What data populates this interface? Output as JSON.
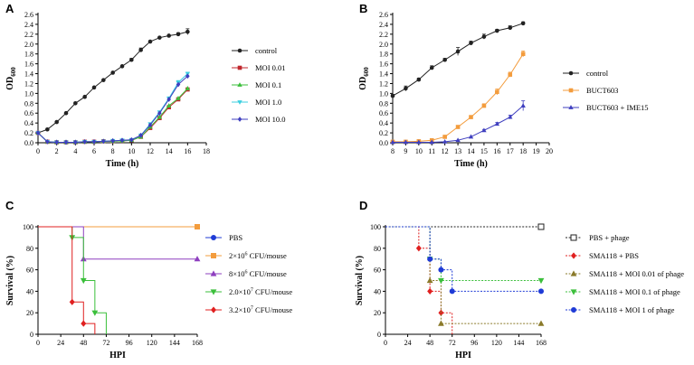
{
  "chart_data": [
    {
      "panel": "A",
      "type": "line",
      "xlabel": "Time (h)",
      "ylabel": "OD600",
      "ylabel_main": "OD",
      "ylabel_sub": "600",
      "xlim": [
        0,
        18
      ],
      "ylim": [
        0,
        2.6
      ],
      "xticks": [
        0,
        2,
        4,
        6,
        8,
        10,
        12,
        14,
        16,
        18
      ],
      "xtick_labels": [
        "0",
        "2",
        "4",
        "6",
        "8",
        "10",
        "12",
        "14",
        "16",
        "18"
      ],
      "yticks": [
        0,
        0.2,
        0.4,
        0.6,
        0.8,
        1.0,
        1.2,
        1.4,
        1.6,
        1.8,
        2.0,
        2.2,
        2.4,
        2.6
      ],
      "ytick_labels": [
        "0.0",
        "0.2",
        "0.4",
        "0.6",
        "0.8",
        "1.0",
        "1.2",
        "1.4",
        "1.6",
        "1.8",
        "2.0",
        "2.2",
        "2.4",
        "2.6"
      ],
      "legend_position": "right",
      "series": [
        {
          "name": "control",
          "color": "#222222",
          "marker": "circle",
          "x": [
            0,
            1,
            2,
            3,
            4,
            5,
            6,
            7,
            8,
            9,
            10,
            11,
            12,
            13,
            14,
            15,
            16
          ],
          "y": [
            0.2,
            0.27,
            0.42,
            0.6,
            0.8,
            0.93,
            1.12,
            1.27,
            1.42,
            1.55,
            1.68,
            1.88,
            2.05,
            2.13,
            2.17,
            2.2,
            2.25
          ],
          "err": [
            0,
            0,
            0,
            0,
            0,
            0,
            0,
            0,
            0,
            0,
            0.03,
            0.04,
            0,
            0,
            0,
            0.03,
            0.06
          ]
        },
        {
          "name": "MOI 0.01",
          "color": "#c0272d",
          "marker": "square",
          "x": [
            0,
            1,
            2,
            3,
            4,
            5,
            6,
            7,
            8,
            9,
            10,
            11,
            12,
            13,
            14,
            15,
            16
          ],
          "y": [
            0.2,
            0.02,
            0.01,
            0.01,
            0.01,
            0.02,
            0.02,
            0.03,
            0.03,
            0.04,
            0.05,
            0.12,
            0.3,
            0.5,
            0.72,
            0.88,
            1.08
          ],
          "err": []
        },
        {
          "name": "MOI 0.1",
          "color": "#3bbf3b",
          "marker": "triangle",
          "x": [
            0,
            1,
            2,
            3,
            4,
            5,
            6,
            7,
            8,
            9,
            10,
            11,
            12,
            13,
            14,
            15,
            16
          ],
          "y": [
            0.2,
            0.02,
            0.01,
            0.01,
            0.01,
            0.02,
            0.02,
            0.03,
            0.03,
            0.04,
            0.05,
            0.12,
            0.32,
            0.52,
            0.75,
            0.9,
            1.1
          ],
          "err": []
        },
        {
          "name": "MOI 1.0",
          "color": "#3ccfe0",
          "marker": "triangle-down",
          "x": [
            0,
            1,
            2,
            3,
            4,
            5,
            6,
            7,
            8,
            9,
            10,
            11,
            12,
            13,
            14,
            15,
            16
          ],
          "y": [
            0.2,
            0.02,
            0.01,
            0.01,
            0.01,
            0.02,
            0.02,
            0.03,
            0.04,
            0.05,
            0.06,
            0.15,
            0.38,
            0.62,
            0.9,
            1.22,
            1.4
          ],
          "err": [
            0,
            0,
            0,
            0,
            0,
            0,
            0,
            0,
            0,
            0,
            0,
            0,
            0,
            0,
            0.03,
            0.04,
            0.03
          ]
        },
        {
          "name": "MOI 10.0",
          "color": "#3f3fbf",
          "marker": "diamond",
          "x": [
            0,
            1,
            2,
            3,
            4,
            5,
            6,
            7,
            8,
            9,
            10,
            11,
            12,
            13,
            14,
            15,
            16
          ],
          "y": [
            0.2,
            0.02,
            0.01,
            0.01,
            0.01,
            0.02,
            0.02,
            0.03,
            0.04,
            0.05,
            0.06,
            0.15,
            0.36,
            0.6,
            0.88,
            1.18,
            1.35
          ],
          "err": []
        }
      ]
    },
    {
      "panel": "B",
      "type": "line",
      "xlabel": "Time (h)",
      "ylabel": "OD600",
      "ylabel_main": "OD",
      "ylabel_sub": "600",
      "xlim": [
        8,
        20
      ],
      "ylim": [
        0,
        2.6
      ],
      "xticks": [
        8,
        9,
        10,
        11,
        12,
        13,
        14,
        15,
        16,
        17,
        18,
        19,
        20
      ],
      "xtick_labels": [
        "8",
        "9",
        "10",
        "11",
        "12",
        "13",
        "14",
        "15",
        "16",
        "17",
        "18",
        "19",
        "20"
      ],
      "yticks": [
        0,
        0.2,
        0.4,
        0.6,
        0.8,
        1.0,
        1.2,
        1.4,
        1.6,
        1.8,
        2.0,
        2.2,
        2.4,
        2.6
      ],
      "ytick_labels": [
        "0.0",
        "0.2",
        "0.4",
        "0.6",
        "0.8",
        "1.0",
        "1.2",
        "1.4",
        "1.6",
        "1.8",
        "2.0",
        "2.2",
        "2.4",
        "2.6"
      ],
      "legend_position": "right",
      "series": [
        {
          "name": "control",
          "color": "#222222",
          "marker": "circle",
          "x": [
            8,
            9,
            10,
            11,
            12,
            13,
            14,
            15,
            16,
            17,
            18
          ],
          "y": [
            0.95,
            1.1,
            1.28,
            1.52,
            1.68,
            1.85,
            2.02,
            2.15,
            2.27,
            2.33,
            2.42
          ],
          "err": [
            0.03,
            0.05,
            0.03,
            0.04,
            0.03,
            0.08,
            0.04,
            0.05,
            0.03,
            0.04,
            0.03
          ]
        },
        {
          "name": "BUCT603",
          "color": "#f39c3d",
          "marker": "square",
          "x": [
            8,
            9,
            10,
            11,
            12,
            13,
            14,
            15,
            16,
            17,
            18
          ],
          "y": [
            0.02,
            0.02,
            0.03,
            0.05,
            0.12,
            0.32,
            0.52,
            0.75,
            1.03,
            1.38,
            1.8
          ],
          "err": [
            0,
            0,
            0,
            0,
            0.02,
            0.03,
            0.03,
            0.04,
            0.06,
            0.05,
            0.06
          ]
        },
        {
          "name": "BUCT603 + IME15",
          "color": "#3f3fbf",
          "marker": "triangle",
          "x": [
            8,
            9,
            10,
            11,
            12,
            13,
            14,
            15,
            16,
            17,
            18
          ],
          "y": [
            0.01,
            0.01,
            0.01,
            0.01,
            0.02,
            0.05,
            0.12,
            0.25,
            0.38,
            0.52,
            0.75
          ],
          "err": [
            0,
            0,
            0,
            0,
            0,
            0,
            0,
            0.02,
            0.03,
            0.04,
            0.1
          ]
        }
      ]
    },
    {
      "panel": "C",
      "type": "step",
      "xlabel": "HPI",
      "ylabel": "Survival (%)",
      "xlim": [
        0,
        168
      ],
      "ylim": [
        0,
        100
      ],
      "xticks": [
        0,
        24,
        48,
        72,
        96,
        120,
        144,
        168
      ],
      "xtick_labels": [
        "0",
        "24",
        "48",
        "72",
        "96",
        "120",
        "144",
        "168"
      ],
      "yticks": [
        0,
        20,
        40,
        60,
        80,
        100
      ],
      "ytick_labels": [
        "0",
        "20",
        "40",
        "60",
        "80",
        "100"
      ],
      "legend_position": "right",
      "series": [
        {
          "name": "PBS",
          "label_base": "PBS",
          "label_exp": "",
          "label_tail": "",
          "color": "#1f3bd6",
          "marker": "circle",
          "dashed": false,
          "x": [
            0,
            168
          ],
          "y": [
            100,
            100
          ]
        },
        {
          "name": "2×10^6 CFU/mouse",
          "label_base": "2×10",
          "label_exp": "6",
          "label_tail": " CFU/mouse",
          "color": "#f39c3d",
          "marker": "square",
          "dashed": false,
          "x": [
            0,
            168
          ],
          "y": [
            100,
            100
          ]
        },
        {
          "name": "8×10^6 CFU/mouse",
          "label_base": "8×10",
          "label_exp": "6",
          "label_tail": " CFU/mouse",
          "color": "#8e3fbf",
          "marker": "triangle",
          "dashed": false,
          "x": [
            0,
            48,
            168
          ],
          "y": [
            100,
            70,
            70
          ]
        },
        {
          "name": "2.0×10^7 CFU/mouse",
          "label_base": "2.0×10",
          "label_exp": "7",
          "label_tail": " CFU/mouse",
          "color": "#3bbf3b",
          "marker": "triangle-down",
          "dashed": false,
          "x": [
            0,
            36,
            48,
            60,
            72
          ],
          "y": [
            100,
            90,
            50,
            20,
            0
          ]
        },
        {
          "name": "3.2×10^7 CFU/mouse",
          "label_base": "3.2×10",
          "label_exp": "7",
          "label_tail": " CFU/mouse",
          "color": "#e02020",
          "marker": "diamond",
          "dashed": false,
          "x": [
            0,
            36,
            48,
            60
          ],
          "y": [
            100,
            30,
            10,
            0
          ]
        }
      ]
    },
    {
      "panel": "D",
      "type": "step",
      "xlabel": "HPI",
      "ylabel": "Survival (%)",
      "xlim": [
        0,
        168
      ],
      "ylim": [
        0,
        100
      ],
      "xticks": [
        0,
        24,
        48,
        72,
        96,
        120,
        144,
        168
      ],
      "xtick_labels": [
        "0",
        "24",
        "48",
        "72",
        "96",
        "120",
        "144",
        "168"
      ],
      "yticks": [
        0,
        20,
        40,
        60,
        80,
        100
      ],
      "ytick_labels": [
        "0",
        "20",
        "40",
        "60",
        "80",
        "100"
      ],
      "legend_position": "right",
      "series": [
        {
          "name": "PBS + phage",
          "label_base": "PBS + phage",
          "label_exp": "",
          "label_tail": "",
          "color": "#222222",
          "marker": "open-square",
          "dashed": true,
          "x": [
            0,
            168
          ],
          "y": [
            100,
            100
          ]
        },
        {
          "name": "SMA118 + PBS",
          "label_base": "SMA118 + PBS",
          "label_exp": "",
          "label_tail": "",
          "color": "#e02020",
          "marker": "diamond",
          "dashed": true,
          "x": [
            0,
            36,
            48,
            60,
            72
          ],
          "y": [
            100,
            80,
            40,
            20,
            0
          ]
        },
        {
          "name": "SMA118 + MOI 0.01 of phage",
          "label_base": "SMA118 + MOI 0.01 of phage",
          "label_exp": "",
          "label_tail": "",
          "color": "#8a7a2a",
          "marker": "triangle",
          "dashed": true,
          "x": [
            0,
            48,
            60,
            168
          ],
          "y": [
            100,
            50,
            10,
            10
          ]
        },
        {
          "name": "SMA118 + MOI 0.1 of phage",
          "label_base": "SMA118 + MOI 0.1 of phage",
          "label_exp": "",
          "label_tail": "",
          "color": "#3bbf3b",
          "marker": "triangle-down",
          "dashed": true,
          "x": [
            0,
            48,
            60,
            168
          ],
          "y": [
            100,
            70,
            50,
            50
          ]
        },
        {
          "name": "SMA118 + MOI 1 of phage",
          "label_base": "SMA118 + MOI 1 of phage",
          "label_exp": "",
          "label_tail": "",
          "color": "#1f3bd6",
          "marker": "circle",
          "dashed": true,
          "x": [
            0,
            48,
            60,
            72,
            168
          ],
          "y": [
            100,
            70,
            60,
            40,
            40
          ]
        }
      ]
    }
  ]
}
